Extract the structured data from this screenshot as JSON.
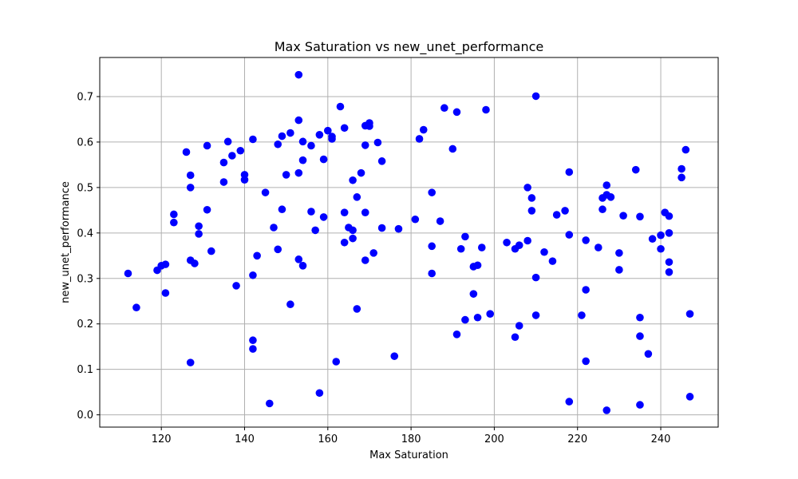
{
  "chart_data": {
    "type": "scatter",
    "title": "Max Saturation vs new_unet_performance",
    "xlabel": "Max Saturation",
    "ylabel": "new_unet_performance",
    "xlim": [
      105.2,
      253.8
    ],
    "ylim": [
      -0.027,
      0.786
    ],
    "xticks": [
      120,
      140,
      160,
      180,
      200,
      220,
      240
    ],
    "yticks": [
      0.0,
      0.1,
      0.2,
      0.3,
      0.4,
      0.5,
      0.6,
      0.7
    ],
    "xtick_labels": [
      "120",
      "140",
      "160",
      "180",
      "200",
      "220",
      "240"
    ],
    "ytick_labels": [
      "0.0",
      "0.1",
      "0.2",
      "0.3",
      "0.4",
      "0.5",
      "0.6",
      "0.7"
    ],
    "grid": true,
    "colors": {
      "marker": "#0000ff",
      "grid": "#b0b0b0",
      "axes": "#000000"
    },
    "points": [
      {
        "x": 112,
        "y": 0.311
      },
      {
        "x": 114,
        "y": 0.236
      },
      {
        "x": 119,
        "y": 0.318
      },
      {
        "x": 120,
        "y": 0.328
      },
      {
        "x": 121,
        "y": 0.331
      },
      {
        "x": 121,
        "y": 0.268
      },
      {
        "x": 123,
        "y": 0.441
      },
      {
        "x": 123,
        "y": 0.423
      },
      {
        "x": 126,
        "y": 0.578
      },
      {
        "x": 127,
        "y": 0.527
      },
      {
        "x": 127,
        "y": 0.5
      },
      {
        "x": 127,
        "y": 0.34
      },
      {
        "x": 127,
        "y": 0.115
      },
      {
        "x": 128,
        "y": 0.333
      },
      {
        "x": 129,
        "y": 0.415
      },
      {
        "x": 129,
        "y": 0.398
      },
      {
        "x": 131,
        "y": 0.592
      },
      {
        "x": 131,
        "y": 0.451
      },
      {
        "x": 132,
        "y": 0.36
      },
      {
        "x": 135,
        "y": 0.555
      },
      {
        "x": 135,
        "y": 0.512
      },
      {
        "x": 136,
        "y": 0.601
      },
      {
        "x": 137,
        "y": 0.57
      },
      {
        "x": 138,
        "y": 0.284
      },
      {
        "x": 139,
        "y": 0.581
      },
      {
        "x": 140,
        "y": 0.528
      },
      {
        "x": 140,
        "y": 0.517
      },
      {
        "x": 142,
        "y": 0.606
      },
      {
        "x": 142,
        "y": 0.307
      },
      {
        "x": 142,
        "y": 0.164
      },
      {
        "x": 142,
        "y": 0.145
      },
      {
        "x": 143,
        "y": 0.35
      },
      {
        "x": 145,
        "y": 0.489
      },
      {
        "x": 146,
        "y": 0.025
      },
      {
        "x": 147,
        "y": 0.412
      },
      {
        "x": 148,
        "y": 0.595
      },
      {
        "x": 148,
        "y": 0.364
      },
      {
        "x": 149,
        "y": 0.613
      },
      {
        "x": 149,
        "y": 0.452
      },
      {
        "x": 150,
        "y": 0.528
      },
      {
        "x": 151,
        "y": 0.62
      },
      {
        "x": 151,
        "y": 0.243
      },
      {
        "x": 153,
        "y": 0.748
      },
      {
        "x": 153,
        "y": 0.648
      },
      {
        "x": 153,
        "y": 0.532
      },
      {
        "x": 153,
        "y": 0.342
      },
      {
        "x": 154,
        "y": 0.601
      },
      {
        "x": 154,
        "y": 0.56
      },
      {
        "x": 154,
        "y": 0.328
      },
      {
        "x": 156,
        "y": 0.592
      },
      {
        "x": 156,
        "y": 0.447
      },
      {
        "x": 157,
        "y": 0.406
      },
      {
        "x": 158,
        "y": 0.616
      },
      {
        "x": 158,
        "y": 0.048
      },
      {
        "x": 159,
        "y": 0.562
      },
      {
        "x": 159,
        "y": 0.435
      },
      {
        "x": 160,
        "y": 0.625
      },
      {
        "x": 161,
        "y": 0.612
      },
      {
        "x": 161,
        "y": 0.607
      },
      {
        "x": 162,
        "y": 0.117
      },
      {
        "x": 163,
        "y": 0.678
      },
      {
        "x": 164,
        "y": 0.631
      },
      {
        "x": 164,
        "y": 0.445
      },
      {
        "x": 164,
        "y": 0.379
      },
      {
        "x": 165,
        "y": 0.412
      },
      {
        "x": 166,
        "y": 0.516
      },
      {
        "x": 166,
        "y": 0.406
      },
      {
        "x": 166,
        "y": 0.388
      },
      {
        "x": 167,
        "y": 0.479
      },
      {
        "x": 167,
        "y": 0.233
      },
      {
        "x": 168,
        "y": 0.532
      },
      {
        "x": 169,
        "y": 0.636
      },
      {
        "x": 169,
        "y": 0.593
      },
      {
        "x": 169,
        "y": 0.445
      },
      {
        "x": 169,
        "y": 0.34
      },
      {
        "x": 170,
        "y": 0.642
      },
      {
        "x": 170,
        "y": 0.635
      },
      {
        "x": 171,
        "y": 0.356
      },
      {
        "x": 172,
        "y": 0.599
      },
      {
        "x": 173,
        "y": 0.558
      },
      {
        "x": 173,
        "y": 0.411
      },
      {
        "x": 176,
        "y": 0.129
      },
      {
        "x": 177,
        "y": 0.409
      },
      {
        "x": 181,
        "y": 0.43
      },
      {
        "x": 182,
        "y": 0.607
      },
      {
        "x": 183,
        "y": 0.627
      },
      {
        "x": 185,
        "y": 0.489
      },
      {
        "x": 185,
        "y": 0.371
      },
      {
        "x": 185,
        "y": 0.311
      },
      {
        "x": 187,
        "y": 0.426
      },
      {
        "x": 188,
        "y": 0.675
      },
      {
        "x": 190,
        "y": 0.585
      },
      {
        "x": 191,
        "y": 0.666
      },
      {
        "x": 191,
        "y": 0.177
      },
      {
        "x": 192,
        "y": 0.365
      },
      {
        "x": 193,
        "y": 0.392
      },
      {
        "x": 193,
        "y": 0.209
      },
      {
        "x": 195,
        "y": 0.326
      },
      {
        "x": 195,
        "y": 0.266
      },
      {
        "x": 196,
        "y": 0.329
      },
      {
        "x": 196,
        "y": 0.214
      },
      {
        "x": 197,
        "y": 0.368
      },
      {
        "x": 198,
        "y": 0.671
      },
      {
        "x": 199,
        "y": 0.222
      },
      {
        "x": 203,
        "y": 0.379
      },
      {
        "x": 205,
        "y": 0.365
      },
      {
        "x": 205,
        "y": 0.171
      },
      {
        "x": 206,
        "y": 0.373
      },
      {
        "x": 206,
        "y": 0.196
      },
      {
        "x": 208,
        "y": 0.5
      },
      {
        "x": 208,
        "y": 0.383
      },
      {
        "x": 209,
        "y": 0.477
      },
      {
        "x": 209,
        "y": 0.449
      },
      {
        "x": 210,
        "y": 0.701
      },
      {
        "x": 210,
        "y": 0.302
      },
      {
        "x": 210,
        "y": 0.219
      },
      {
        "x": 212,
        "y": 0.358
      },
      {
        "x": 214,
        "y": 0.338
      },
      {
        "x": 215,
        "y": 0.44
      },
      {
        "x": 217,
        "y": 0.449
      },
      {
        "x": 218,
        "y": 0.534
      },
      {
        "x": 218,
        "y": 0.396
      },
      {
        "x": 218,
        "y": 0.029
      },
      {
        "x": 221,
        "y": 0.219
      },
      {
        "x": 222,
        "y": 0.384
      },
      {
        "x": 222,
        "y": 0.275
      },
      {
        "x": 222,
        "y": 0.118
      },
      {
        "x": 225,
        "y": 0.368
      },
      {
        "x": 226,
        "y": 0.477
      },
      {
        "x": 226,
        "y": 0.452
      },
      {
        "x": 227,
        "y": 0.505
      },
      {
        "x": 227,
        "y": 0.484
      },
      {
        "x": 227,
        "y": 0.01
      },
      {
        "x": 228,
        "y": 0.479
      },
      {
        "x": 230,
        "y": 0.356
      },
      {
        "x": 230,
        "y": 0.319
      },
      {
        "x": 231,
        "y": 0.438
      },
      {
        "x": 234,
        "y": 0.539
      },
      {
        "x": 235,
        "y": 0.436
      },
      {
        "x": 235,
        "y": 0.214
      },
      {
        "x": 235,
        "y": 0.173
      },
      {
        "x": 235,
        "y": 0.022
      },
      {
        "x": 237,
        "y": 0.134
      },
      {
        "x": 238,
        "y": 0.387
      },
      {
        "x": 240,
        "y": 0.395
      },
      {
        "x": 240,
        "y": 0.365
      },
      {
        "x": 241,
        "y": 0.445
      },
      {
        "x": 242,
        "y": 0.437
      },
      {
        "x": 242,
        "y": 0.4
      },
      {
        "x": 242,
        "y": 0.336
      },
      {
        "x": 242,
        "y": 0.314
      },
      {
        "x": 245,
        "y": 0.541
      },
      {
        "x": 245,
        "y": 0.522
      },
      {
        "x": 246,
        "y": 0.583
      },
      {
        "x": 247,
        "y": 0.222
      },
      {
        "x": 247,
        "y": 0.04
      }
    ]
  }
}
